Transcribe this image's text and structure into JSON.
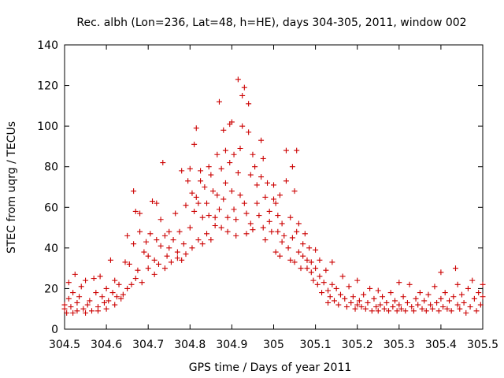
{
  "chart_data": {
    "type": "scatter",
    "title": "Rec. albh (Lon=236, Lat=48, h=HE), days 304-305, 2011, window 002",
    "xlabel": "GPS time / Days of year 2011",
    "ylabel": "STEC from uqrg / TECUs",
    "xlim": [
      304.5,
      305.5
    ],
    "ylim": [
      0,
      140
    ],
    "xticks": [
      304.5,
      304.6,
      304.7,
      304.8,
      304.9,
      305,
      305.1,
      305.2,
      305.3,
      305.4,
      305.5
    ],
    "xtick_labels": [
      "304.5",
      "304.6",
      "304.7",
      "304.8",
      "304.9",
      "305",
      "305.1",
      "305.2",
      "305.3",
      "305.4",
      "305.5"
    ],
    "yticks": [
      0,
      20,
      40,
      60,
      80,
      100,
      120,
      140
    ],
    "ytick_labels": [
      "0",
      "20",
      "40",
      "60",
      "80",
      "100",
      "120",
      "140"
    ],
    "grid": false,
    "marker": "plus",
    "color": "#cc0000",
    "series": [
      {
        "points": [
          [
            304.5,
            10
          ],
          [
            304.5,
            12
          ],
          [
            304.505,
            8
          ],
          [
            304.51,
            15
          ],
          [
            304.51,
            23
          ],
          [
            304.515,
            11
          ],
          [
            304.52,
            18
          ],
          [
            304.52,
            8
          ],
          [
            304.525,
            27
          ],
          [
            304.53,
            13
          ],
          [
            304.53,
            9
          ],
          [
            304.535,
            16
          ],
          [
            304.54,
            21
          ],
          [
            304.545,
            10
          ],
          [
            304.55,
            8
          ],
          [
            304.55,
            24
          ],
          [
            304.555,
            12
          ],
          [
            304.56,
            14
          ],
          [
            304.565,
            9
          ],
          [
            304.57,
            25
          ],
          [
            304.575,
            18
          ],
          [
            304.58,
            11
          ],
          [
            304.58,
            9
          ],
          [
            304.585,
            26
          ],
          [
            304.59,
            16
          ],
          [
            304.595,
            13
          ],
          [
            304.6,
            20
          ],
          [
            304.6,
            10
          ],
          [
            304.605,
            14
          ],
          [
            304.61,
            34
          ],
          [
            304.615,
            18
          ],
          [
            304.62,
            12
          ],
          [
            304.62,
            24
          ],
          [
            304.625,
            16
          ],
          [
            304.63,
            22
          ],
          [
            304.635,
            15
          ],
          [
            304.64,
            17
          ],
          [
            304.645,
            33
          ],
          [
            304.65,
            20
          ],
          [
            304.65,
            46
          ],
          [
            304.655,
            32
          ],
          [
            304.66,
            22
          ],
          [
            304.665,
            42
          ],
          [
            304.665,
            68
          ],
          [
            304.67,
            25
          ],
          [
            304.67,
            58
          ],
          [
            304.675,
            29
          ],
          [
            304.68,
            48
          ],
          [
            304.68,
            57
          ],
          [
            304.685,
            23
          ],
          [
            304.69,
            38
          ],
          [
            304.695,
            43
          ],
          [
            304.7,
            30
          ],
          [
            304.7,
            36
          ],
          [
            304.705,
            47
          ],
          [
            304.71,
            63
          ],
          [
            304.715,
            34
          ],
          [
            304.715,
            27
          ],
          [
            304.72,
            44
          ],
          [
            304.72,
            62
          ],
          [
            304.725,
            32
          ],
          [
            304.73,
            54
          ],
          [
            304.73,
            41
          ],
          [
            304.735,
            82
          ],
          [
            304.74,
            46
          ],
          [
            304.74,
            30
          ],
          [
            304.745,
            36
          ],
          [
            304.75,
            48
          ],
          [
            304.75,
            40
          ],
          [
            304.755,
            33
          ],
          [
            304.76,
            44
          ],
          [
            304.765,
            57
          ],
          [
            304.77,
            38
          ],
          [
            304.77,
            35
          ],
          [
            304.775,
            48
          ],
          [
            304.78,
            78
          ],
          [
            304.78,
            34
          ],
          [
            304.785,
            42
          ],
          [
            304.79,
            61
          ],
          [
            304.79,
            37
          ],
          [
            304.795,
            73
          ],
          [
            304.8,
            50
          ],
          [
            304.8,
            79
          ],
          [
            304.805,
            67
          ],
          [
            304.805,
            40
          ],
          [
            304.81,
            58
          ],
          [
            304.81,
            91
          ],
          [
            304.815,
            99
          ],
          [
            304.815,
            65
          ],
          [
            304.82,
            62
          ],
          [
            304.82,
            44
          ],
          [
            304.825,
            78
          ],
          [
            304.825,
            73
          ],
          [
            304.83,
            42
          ],
          [
            304.83,
            55
          ],
          [
            304.835,
            70
          ],
          [
            304.84,
            47
          ],
          [
            304.84,
            62
          ],
          [
            304.845,
            80
          ],
          [
            304.845,
            56
          ],
          [
            304.85,
            76
          ],
          [
            304.85,
            44
          ],
          [
            304.855,
            68
          ],
          [
            304.86,
            55
          ],
          [
            304.86,
            51
          ],
          [
            304.865,
            86
          ],
          [
            304.865,
            66
          ],
          [
            304.87,
            112
          ],
          [
            304.87,
            59
          ],
          [
            304.875,
            50
          ],
          [
            304.875,
            79
          ],
          [
            304.88,
            98
          ],
          [
            304.88,
            64
          ],
          [
            304.885,
            72
          ],
          [
            304.885,
            88
          ],
          [
            304.89,
            55
          ],
          [
            304.89,
            48
          ],
          [
            304.895,
            82
          ],
          [
            304.895,
            101
          ],
          [
            304.9,
            102
          ],
          [
            304.9,
            68
          ],
          [
            304.905,
            59
          ],
          [
            304.905,
            86
          ],
          [
            304.91,
            54
          ],
          [
            304.91,
            46
          ],
          [
            304.915,
            123
          ],
          [
            304.915,
            77
          ],
          [
            304.92,
            66
          ],
          [
            304.92,
            89
          ],
          [
            304.925,
            115
          ],
          [
            304.925,
            100
          ],
          [
            304.93,
            119
          ],
          [
            304.93,
            62
          ],
          [
            304.935,
            57
          ],
          [
            304.935,
            47
          ],
          [
            304.94,
            111
          ],
          [
            304.94,
            97
          ],
          [
            304.945,
            76
          ],
          [
            304.945,
            52
          ],
          [
            304.95,
            49
          ],
          [
            304.95,
            86
          ],
          [
            304.955,
            80
          ],
          [
            304.96,
            71
          ],
          [
            304.96,
            62
          ],
          [
            304.965,
            56
          ],
          [
            304.97,
            93
          ],
          [
            304.97,
            75
          ],
          [
            304.975,
            84
          ],
          [
            304.975,
            50
          ],
          [
            304.98,
            65
          ],
          [
            304.98,
            44
          ],
          [
            304.985,
            72
          ],
          [
            304.99,
            58
          ],
          [
            304.99,
            53
          ],
          [
            304.995,
            48
          ],
          [
            305.0,
            64
          ],
          [
            305.0,
            71
          ],
          [
            305.005,
            62
          ],
          [
            305.005,
            38
          ],
          [
            305.01,
            56
          ],
          [
            305.01,
            48
          ],
          [
            305.015,
            36
          ],
          [
            305.015,
            66
          ],
          [
            305.02,
            52
          ],
          [
            305.02,
            43
          ],
          [
            305.025,
            46
          ],
          [
            305.03,
            88
          ],
          [
            305.03,
            73
          ],
          [
            305.035,
            40
          ],
          [
            305.04,
            55
          ],
          [
            305.04,
            34
          ],
          [
            305.045,
            80
          ],
          [
            305.045,
            45
          ],
          [
            305.05,
            68
          ],
          [
            305.05,
            33
          ],
          [
            305.055,
            88
          ],
          [
            305.055,
            48
          ],
          [
            305.06,
            38
          ],
          [
            305.06,
            52
          ],
          [
            305.065,
            30
          ],
          [
            305.07,
            42
          ],
          [
            305.07,
            36
          ],
          [
            305.075,
            47
          ],
          [
            305.08,
            34
          ],
          [
            305.08,
            30
          ],
          [
            305.085,
            40
          ],
          [
            305.09,
            28
          ],
          [
            305.09,
            33
          ],
          [
            305.095,
            24
          ],
          [
            305.1,
            39
          ],
          [
            305.1,
            30
          ],
          [
            305.105,
            22
          ],
          [
            305.11,
            26
          ],
          [
            305.11,
            34
          ],
          [
            305.115,
            18
          ],
          [
            305.12,
            23
          ],
          [
            305.125,
            29
          ],
          [
            305.13,
            19
          ],
          [
            305.13,
            13
          ],
          [
            305.135,
            16
          ],
          [
            305.14,
            22
          ],
          [
            305.14,
            33
          ],
          [
            305.145,
            14
          ],
          [
            305.15,
            20
          ],
          [
            305.155,
            12
          ],
          [
            305.16,
            17
          ],
          [
            305.165,
            26
          ],
          [
            305.17,
            15
          ],
          [
            305.175,
            11
          ],
          [
            305.18,
            21
          ],
          [
            305.185,
            13
          ],
          [
            305.19,
            16
          ],
          [
            305.195,
            10
          ],
          [
            305.2,
            24
          ],
          [
            305.2,
            12
          ],
          [
            305.205,
            14
          ],
          [
            305.21,
            11
          ],
          [
            305.215,
            17
          ],
          [
            305.22,
            10
          ],
          [
            305.225,
            13
          ],
          [
            305.23,
            20
          ],
          [
            305.235,
            9
          ],
          [
            305.24,
            15
          ],
          [
            305.245,
            11
          ],
          [
            305.25,
            19
          ],
          [
            305.25,
            9
          ],
          [
            305.255,
            12
          ],
          [
            305.26,
            16
          ],
          [
            305.265,
            10
          ],
          [
            305.27,
            13
          ],
          [
            305.275,
            9
          ],
          [
            305.28,
            18
          ],
          [
            305.285,
            11
          ],
          [
            305.29,
            14
          ],
          [
            305.295,
            9
          ],
          [
            305.3,
            23
          ],
          [
            305.3,
            12
          ],
          [
            305.305,
            10
          ],
          [
            305.31,
            16
          ],
          [
            305.315,
            9
          ],
          [
            305.32,
            13
          ],
          [
            305.325,
            22
          ],
          [
            305.33,
            11
          ],
          [
            305.335,
            9
          ],
          [
            305.34,
            15
          ],
          [
            305.345,
            12
          ],
          [
            305.35,
            18
          ],
          [
            305.355,
            10
          ],
          [
            305.36,
            14
          ],
          [
            305.365,
            9
          ],
          [
            305.37,
            17
          ],
          [
            305.375,
            12
          ],
          [
            305.38,
            10
          ],
          [
            305.385,
            21
          ],
          [
            305.39,
            13
          ],
          [
            305.395,
            9
          ],
          [
            305.4,
            15
          ],
          [
            305.4,
            28
          ],
          [
            305.405,
            11
          ],
          [
            305.41,
            18
          ],
          [
            305.415,
            10
          ],
          [
            305.42,
            14
          ],
          [
            305.425,
            9
          ],
          [
            305.43,
            16
          ],
          [
            305.435,
            30
          ],
          [
            305.44,
            12
          ],
          [
            305.44,
            22
          ],
          [
            305.445,
            10
          ],
          [
            305.45,
            17
          ],
          [
            305.455,
            13
          ],
          [
            305.46,
            8
          ],
          [
            305.465,
            20
          ],
          [
            305.47,
            11
          ],
          [
            305.475,
            24
          ],
          [
            305.48,
            15
          ],
          [
            305.485,
            9
          ],
          [
            305.49,
            18
          ],
          [
            305.495,
            12
          ],
          [
            305.5,
            22
          ],
          [
            305.5,
            16
          ]
        ]
      }
    ]
  }
}
